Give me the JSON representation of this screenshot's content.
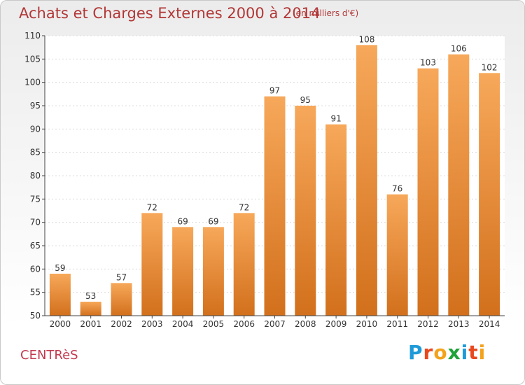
{
  "header": {
    "title": "Achats et Charges Externes 2000 à 2014",
    "unit": "(en milliers d'€)"
  },
  "footer": {
    "commune": "CENTRèS",
    "brand": "Proxiti",
    "brand_letters": [
      "P",
      "r",
      "o",
      "x",
      "i",
      "t",
      "i"
    ],
    "brand_colors": [
      "#1f9ad8",
      "#e8481e",
      "#f3a21c",
      "#1fa23a",
      "#1f9ad8",
      "#e8481e",
      "#f3a21c"
    ]
  },
  "chart_data": {
    "type": "bar",
    "title": "Achats et Charges Externes 2000 à 2014",
    "xlabel": "",
    "ylabel": "",
    "categories": [
      "2000",
      "2001",
      "2002",
      "2003",
      "2004",
      "2005",
      "2006",
      "2007",
      "2008",
      "2009",
      "2010",
      "2011",
      "2012",
      "2013",
      "2014"
    ],
    "values": [
      59,
      53,
      57,
      72,
      69,
      69,
      72,
      97,
      95,
      91,
      108,
      76,
      103,
      106,
      102
    ],
    "ylim": [
      50,
      110
    ],
    "yticks": [
      50,
      55,
      60,
      65,
      70,
      75,
      80,
      85,
      90,
      95,
      100,
      105,
      110
    ],
    "grid": true,
    "bar_color_top": "#f7a85a",
    "bar_color_bottom": "#d2701c"
  }
}
